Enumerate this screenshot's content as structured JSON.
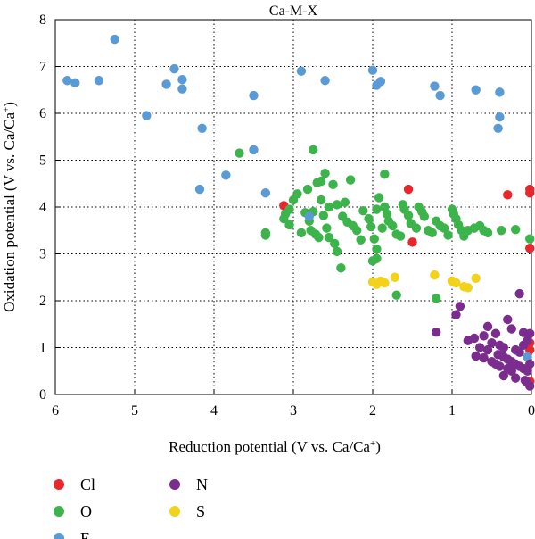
{
  "chart_data": {
    "type": "scatter",
    "title": "Ca-M-X",
    "xlabel": "Reduction potential (V vs. Ca/Ca",
    "ylabel": "Oxidation potential (V vs. Ca/Ca",
    "label_superscript": "+",
    "label_close": ")",
    "x_reversed": true,
    "xlim": [
      6,
      0
    ],
    "ylim": [
      0,
      8
    ],
    "x_ticks": [
      6,
      5,
      4,
      3,
      2,
      1,
      0
    ],
    "y_ticks": [
      0,
      1,
      2,
      3,
      4,
      5,
      6,
      7,
      8
    ],
    "grid": "dotted",
    "legend_position": "bottom",
    "series": [
      {
        "name": "Cl",
        "color": "#e8262b",
        "points": [
          [
            3.12,
            4.03
          ],
          [
            1.55,
            4.38
          ],
          [
            1.5,
            3.25
          ],
          [
            0.3,
            4.26
          ],
          [
            0.02,
            4.38
          ],
          [
            0.02,
            4.3
          ],
          [
            0.02,
            3.12
          ],
          [
            0.02,
            1.1
          ],
          [
            0.02,
            0.95
          ],
          [
            0.02,
            0.28
          ]
        ]
      },
      {
        "name": "O",
        "color": "#3cb44b",
        "points": [
          [
            3.68,
            5.15
          ],
          [
            2.75,
            5.22
          ],
          [
            1.85,
            4.7
          ],
          [
            2.6,
            4.72
          ],
          [
            2.65,
            4.55
          ],
          [
            2.7,
            4.52
          ],
          [
            2.5,
            4.48
          ],
          [
            2.28,
            4.58
          ],
          [
            2.82,
            4.38
          ],
          [
            2.95,
            4.28
          ],
          [
            3.0,
            4.15
          ],
          [
            3.05,
            3.95
          ],
          [
            3.1,
            3.85
          ],
          [
            3.05,
            3.62
          ],
          [
            3.12,
            3.75
          ],
          [
            3.35,
            3.45
          ],
          [
            3.35,
            3.4
          ],
          [
            2.85,
            3.88
          ],
          [
            2.8,
            3.7
          ],
          [
            2.78,
            3.5
          ],
          [
            2.72,
            3.42
          ],
          [
            2.75,
            3.9
          ],
          [
            2.62,
            3.82
          ],
          [
            2.58,
            3.55
          ],
          [
            2.55,
            3.35
          ],
          [
            2.48,
            3.22
          ],
          [
            2.45,
            3.05
          ],
          [
            2.38,
            3.8
          ],
          [
            2.32,
            3.68
          ],
          [
            2.25,
            3.6
          ],
          [
            2.2,
            3.5
          ],
          [
            2.15,
            3.3
          ],
          [
            2.45,
            4.05
          ],
          [
            2.55,
            4.0
          ],
          [
            2.35,
            4.1
          ],
          [
            2.12,
            3.92
          ],
          [
            2.05,
            3.75
          ],
          [
            2.02,
            3.58
          ],
          [
            1.98,
            3.32
          ],
          [
            1.95,
            3.1
          ],
          [
            1.92,
            4.2
          ],
          [
            1.85,
            4.0
          ],
          [
            1.82,
            3.85
          ],
          [
            1.8,
            3.7
          ],
          [
            1.75,
            3.6
          ],
          [
            1.7,
            3.42
          ],
          [
            1.65,
            3.38
          ],
          [
            1.62,
            4.05
          ],
          [
            1.6,
            3.95
          ],
          [
            1.55,
            3.82
          ],
          [
            1.52,
            3.65
          ],
          [
            1.45,
            3.55
          ],
          [
            1.42,
            4.0
          ],
          [
            1.38,
            3.9
          ],
          [
            1.35,
            3.8
          ],
          [
            1.3,
            3.5
          ],
          [
            1.25,
            3.45
          ],
          [
            1.2,
            3.7
          ],
          [
            1.15,
            3.6
          ],
          [
            1.1,
            3.55
          ],
          [
            1.05,
            3.4
          ],
          [
            1.0,
            3.95
          ],
          [
            0.98,
            3.85
          ],
          [
            0.95,
            3.75
          ],
          [
            0.92,
            3.62
          ],
          [
            0.88,
            3.5
          ],
          [
            0.85,
            3.38
          ],
          [
            0.8,
            3.5
          ],
          [
            0.72,
            3.55
          ],
          [
            0.65,
            3.6
          ],
          [
            0.6,
            3.5
          ],
          [
            0.55,
            3.45
          ],
          [
            0.38,
            3.5
          ],
          [
            0.2,
            3.52
          ],
          [
            0.02,
            3.32
          ],
          [
            2.4,
            2.7
          ],
          [
            2.0,
            2.85
          ],
          [
            1.95,
            2.9
          ],
          [
            1.7,
            2.12
          ],
          [
            1.2,
            2.05
          ],
          [
            1.95,
            3.95
          ],
          [
            1.88,
            3.55
          ],
          [
            2.65,
            4.15
          ],
          [
            2.9,
            3.45
          ],
          [
            2.68,
            3.35
          ]
        ]
      },
      {
        "name": "F",
        "color": "#5b9bd5",
        "points": [
          [
            5.25,
            7.58
          ],
          [
            5.85,
            6.7
          ],
          [
            5.75,
            6.65
          ],
          [
            5.45,
            6.7
          ],
          [
            4.5,
            6.95
          ],
          [
            4.4,
            6.72
          ],
          [
            4.4,
            6.52
          ],
          [
            4.6,
            6.62
          ],
          [
            2.9,
            6.9
          ],
          [
            2.6,
            6.7
          ],
          [
            2.0,
            6.92
          ],
          [
            1.9,
            6.68
          ],
          [
            1.95,
            6.6
          ],
          [
            1.22,
            6.58
          ],
          [
            1.15,
            6.38
          ],
          [
            3.5,
            6.38
          ],
          [
            4.85,
            5.95
          ],
          [
            0.7,
            6.5
          ],
          [
            0.4,
            6.45
          ],
          [
            0.4,
            5.92
          ],
          [
            0.42,
            5.68
          ],
          [
            4.15,
            5.68
          ],
          [
            3.5,
            5.22
          ],
          [
            4.18,
            4.38
          ],
          [
            3.85,
            4.68
          ],
          [
            3.35,
            4.3
          ],
          [
            2.8,
            3.8
          ],
          [
            0.05,
            0.8
          ]
        ]
      },
      {
        "name": "N",
        "color": "#7b2d8e",
        "points": [
          [
            0.9,
            1.88
          ],
          [
            0.95,
            1.7
          ],
          [
            0.15,
            2.15
          ],
          [
            1.2,
            1.33
          ],
          [
            0.55,
            1.45
          ],
          [
            0.3,
            1.6
          ],
          [
            0.25,
            1.4
          ],
          [
            0.1,
            1.32
          ],
          [
            0.45,
            1.3
          ],
          [
            0.6,
            1.25
          ],
          [
            0.72,
            1.2
          ],
          [
            0.8,
            1.15
          ],
          [
            0.5,
            1.1
          ],
          [
            0.4,
            1.05
          ],
          [
            0.35,
            1.0
          ],
          [
            0.2,
            0.95
          ],
          [
            0.15,
            0.9
          ],
          [
            0.1,
            1.05
          ],
          [
            0.05,
            1.15
          ],
          [
            0.65,
            1.0
          ],
          [
            0.55,
            0.95
          ],
          [
            0.42,
            0.85
          ],
          [
            0.35,
            0.8
          ],
          [
            0.3,
            0.75
          ],
          [
            0.25,
            0.7
          ],
          [
            0.2,
            0.65
          ],
          [
            0.15,
            0.6
          ],
          [
            0.1,
            0.55
          ],
          [
            0.05,
            0.5
          ],
          [
            0.5,
            0.7
          ],
          [
            0.45,
            0.65
          ],
          [
            0.4,
            0.6
          ],
          [
            0.3,
            0.55
          ],
          [
            0.25,
            0.5
          ],
          [
            0.35,
            0.4
          ],
          [
            0.2,
            0.35
          ],
          [
            0.08,
            0.3
          ],
          [
            0.05,
            0.25
          ],
          [
            0.02,
            0.18
          ],
          [
            0.6,
            0.78
          ],
          [
            0.7,
            0.82
          ],
          [
            0.02,
            0.65
          ],
          [
            0.02,
            1.3
          ]
        ]
      },
      {
        "name": "S",
        "color": "#f2d21b",
        "points": [
          [
            2.0,
            2.4
          ],
          [
            1.9,
            2.42
          ],
          [
            1.85,
            2.38
          ],
          [
            1.72,
            2.5
          ],
          [
            1.95,
            2.35
          ],
          [
            1.22,
            2.55
          ],
          [
            1.0,
            2.42
          ],
          [
            0.95,
            2.38
          ],
          [
            0.85,
            2.3
          ],
          [
            0.8,
            2.28
          ],
          [
            0.7,
            2.48
          ]
        ]
      }
    ],
    "legend": {
      "columns": [
        [
          "Cl",
          "O",
          "F"
        ],
        [
          "N",
          "S"
        ]
      ]
    }
  }
}
